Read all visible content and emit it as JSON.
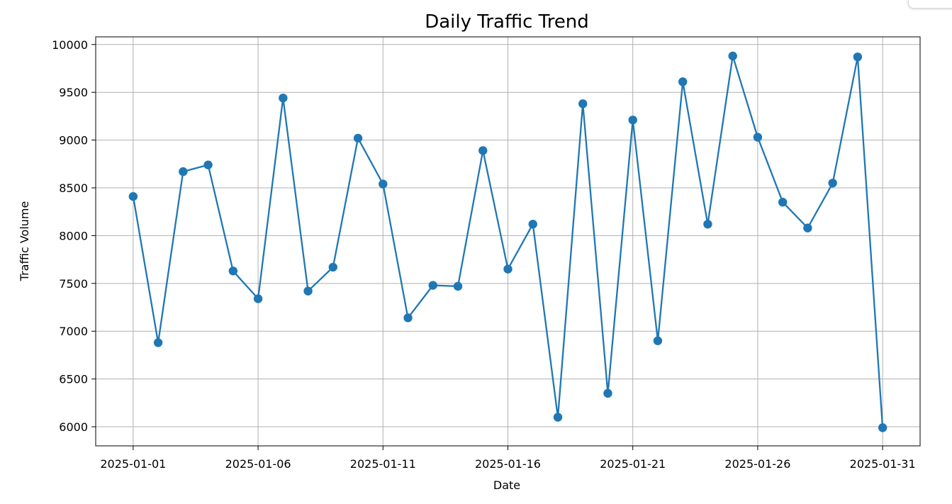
{
  "chart_data": {
    "type": "line",
    "title": "Daily Traffic Trend",
    "xlabel": "Date",
    "ylabel": "Traffic Volume",
    "x": [
      "2025-01-01",
      "2025-01-02",
      "2025-01-03",
      "2025-01-04",
      "2025-01-05",
      "2025-01-06",
      "2025-01-07",
      "2025-01-08",
      "2025-01-09",
      "2025-01-10",
      "2025-01-11",
      "2025-01-12",
      "2025-01-13",
      "2025-01-14",
      "2025-01-15",
      "2025-01-16",
      "2025-01-17",
      "2025-01-18",
      "2025-01-19",
      "2025-01-20",
      "2025-01-21",
      "2025-01-22",
      "2025-01-23",
      "2025-01-24",
      "2025-01-25",
      "2025-01-26",
      "2025-01-27",
      "2025-01-28",
      "2025-01-29",
      "2025-01-30",
      "2025-01-31"
    ],
    "series": [
      {
        "values": [
          8410,
          6880,
          8670,
          8740,
          7630,
          7340,
          9440,
          7420,
          7670,
          9020,
          8540,
          7140,
          7480,
          7470,
          8890,
          7650,
          8120,
          6100,
          9380,
          6350,
          9210,
          6900,
          9610,
          8120,
          9880,
          9030,
          8350,
          8080,
          8550,
          9870,
          5990
        ],
        "color": "#1f77b4",
        "marker": "circle"
      }
    ],
    "xticks": [
      "2025-01-01",
      "2025-01-06",
      "2025-01-11",
      "2025-01-16",
      "2025-01-21",
      "2025-01-26",
      "2025-01-31"
    ],
    "yticks": [
      6000,
      6500,
      7000,
      7500,
      8000,
      8500,
      9000,
      9500,
      10000
    ],
    "ylim": [
      5800,
      10080
    ],
    "xlim": [
      "2024-12-30T12:00",
      "2025-02-01T12:00"
    ],
    "grid": true
  }
}
